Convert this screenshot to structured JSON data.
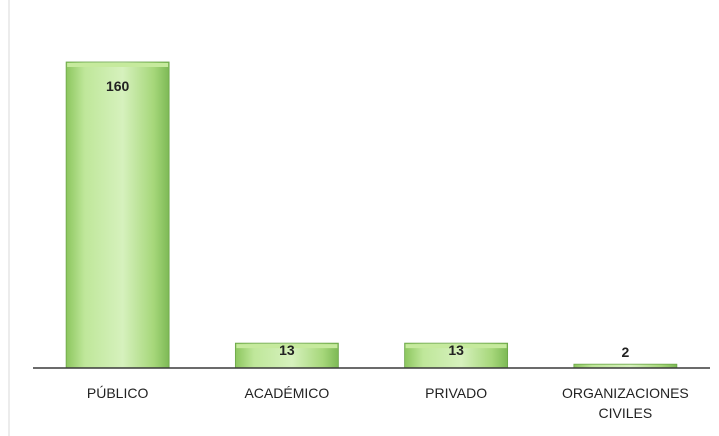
{
  "chart_data": {
    "type": "bar",
    "title": "",
    "xlabel": "",
    "ylabel": "",
    "categories": [
      [
        "PÚBLICO"
      ],
      [
        "ACADÉMICO"
      ],
      [
        "PRIVADO"
      ],
      [
        "ORGANIZACIONES",
        "CIVILES"
      ]
    ],
    "series": [
      {
        "values": [
          160,
          13,
          13,
          2
        ]
      }
    ],
    "data_labels": [
      "160",
      "13",
      "13",
      "2"
    ],
    "ylim": [
      0,
      160
    ],
    "grid": false,
    "legend": "none",
    "colors": {
      "bar_fill_light": "#d9f2c0",
      "bar_fill_mid": "#a9d97a",
      "bar_fill_dark": "#7db955",
      "bar_top": "#c6ea9d",
      "bar_edge": "#6aa548",
      "axis": "#3a3a3a",
      "label_text": "#222222",
      "border": "#d9d9d9"
    }
  }
}
